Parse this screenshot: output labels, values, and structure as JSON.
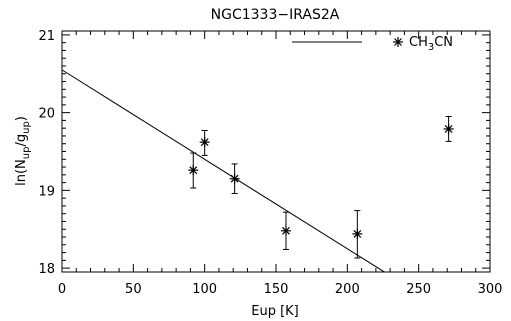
{
  "chart_data": {
    "type": "scatter",
    "title": "NGC1333−IRAS2A",
    "xlabel": "Eup [K]",
    "ylabel_main": "ln(N",
    "ylabel_sub1": "up",
    "ylabel_mid": "/g",
    "ylabel_sub2": "up",
    "ylabel_end": ")",
    "xlim": [
      0,
      300
    ],
    "ylim": [
      17.95,
      21.05
    ],
    "xticks": [
      0,
      50,
      100,
      150,
      200,
      250,
      300
    ],
    "yticks": [
      18,
      19,
      20,
      21
    ],
    "legend": {
      "placement": "top-right",
      "label_main": "CH",
      "label_sub": "3",
      "label_end": "CN"
    },
    "series": [
      {
        "name": "CH3CN",
        "marker": "asterisk",
        "points": [
          {
            "x": 92,
            "y": 19.26,
            "err_low": 19.03,
            "err_high": 19.48
          },
          {
            "x": 100,
            "y": 19.62,
            "err_low": 19.45,
            "err_high": 19.77
          },
          {
            "x": 121,
            "y": 19.15,
            "err_low": 18.96,
            "err_high": 19.34
          },
          {
            "x": 157,
            "y": 18.48,
            "err_low": 18.24,
            "err_high": 18.72
          },
          {
            "x": 207,
            "y": 18.44,
            "err_low": 18.13,
            "err_high": 18.74
          },
          {
            "x": 271,
            "y": 19.79,
            "err_low": 19.63,
            "err_high": 19.95
          }
        ]
      }
    ],
    "fit_line": {
      "x_start": 0,
      "y_start": 20.55,
      "x_end": 226,
      "y_end": 17.95
    }
  }
}
